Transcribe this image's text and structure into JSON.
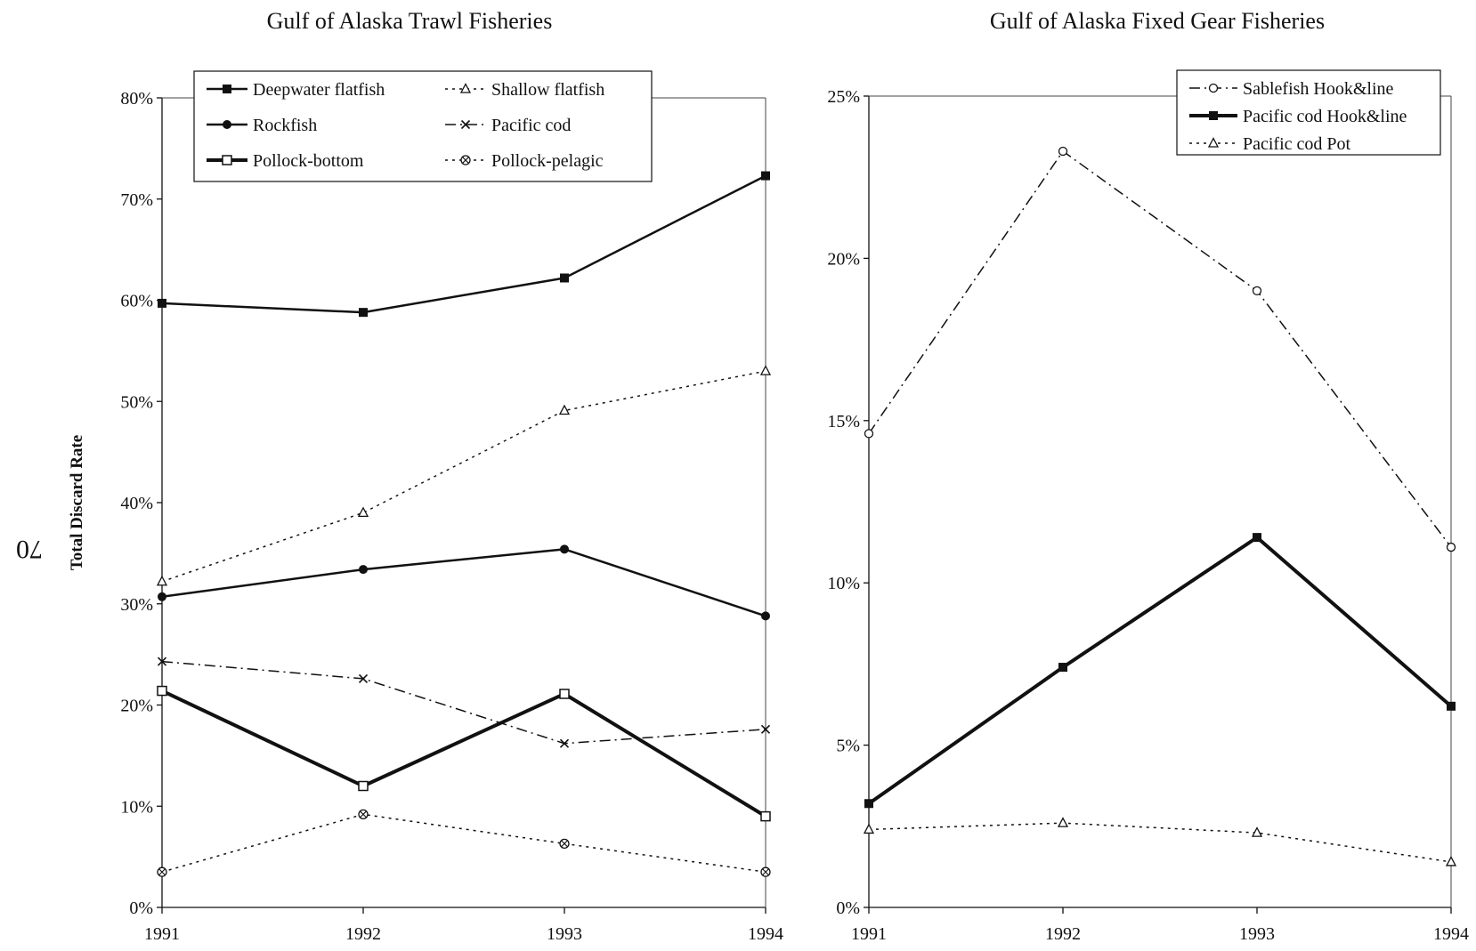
{
  "page_number": "70",
  "chart_data": [
    {
      "type": "line",
      "title": "Gulf of Alaska Trawl Fisheries",
      "xlabel": "",
      "ylabel": "Total Discard Rate",
      "x": [
        1991,
        1992,
        1993,
        1994
      ],
      "x_tick_labels": [
        "1991",
        "1992",
        "1993",
        "1994"
      ],
      "ylim": [
        0,
        80
      ],
      "y_ticks": [
        0,
        10,
        20,
        30,
        40,
        50,
        60,
        70,
        80
      ],
      "y_tick_labels": [
        "0%",
        "10%",
        "20%",
        "30%",
        "40%",
        "50%",
        "60%",
        "70%",
        "80%"
      ],
      "grid": false,
      "legend_position": "top",
      "series": [
        {
          "name": "Deepwater flatfish",
          "values": [
            59.7,
            58.8,
            62.2,
            72.3
          ],
          "style": "solid",
          "width": 2.5,
          "marker": "filled-square",
          "color": "#111111"
        },
        {
          "name": "Shallow flatfish",
          "values": [
            32.2,
            39.0,
            49.1,
            53.0
          ],
          "style": "dotted",
          "width": 1.5,
          "marker": "open-triangle",
          "color": "#111111"
        },
        {
          "name": "Rockfish",
          "values": [
            30.7,
            33.4,
            35.4,
            28.8
          ],
          "style": "solid",
          "width": 2.5,
          "marker": "filled-circle",
          "color": "#111111"
        },
        {
          "name": "Pacific cod",
          "values": [
            24.3,
            22.6,
            16.2,
            17.6
          ],
          "style": "dashdot",
          "width": 1.5,
          "marker": "x",
          "color": "#111111"
        },
        {
          "name": "Pollock-bottom",
          "values": [
            21.4,
            12.0,
            21.1,
            9.0
          ],
          "style": "solid",
          "width": 4,
          "marker": "open-square",
          "color": "#111111"
        },
        {
          "name": "Pollock-pelagic",
          "values": [
            3.5,
            9.2,
            6.3,
            3.5
          ],
          "style": "dotted",
          "width": 1.5,
          "marker": "circle-x",
          "color": "#111111"
        }
      ]
    },
    {
      "type": "line",
      "title": "Gulf of Alaska Fixed Gear Fisheries",
      "xlabel": "",
      "ylabel": "",
      "x": [
        1991,
        1992,
        1993,
        1994
      ],
      "x_tick_labels": [
        "1991",
        "1992",
        "1993",
        "1994"
      ],
      "ylim": [
        0,
        25
      ],
      "y_ticks": [
        0,
        5,
        10,
        15,
        20,
        25
      ],
      "y_tick_labels": [
        "0%",
        "5%",
        "10%",
        "15%",
        "20%",
        "25%"
      ],
      "grid": false,
      "legend_position": "top-right",
      "series": [
        {
          "name": "Sablefish Hook&line",
          "values": [
            14.6,
            23.3,
            19.0,
            11.1
          ],
          "style": "dashdot",
          "width": 1.5,
          "marker": "open-circle",
          "color": "#111111"
        },
        {
          "name": "Pacific cod Hook&line",
          "values": [
            3.2,
            7.4,
            11.4,
            6.2
          ],
          "style": "solid",
          "width": 4,
          "marker": "filled-square",
          "color": "#111111"
        },
        {
          "name": "Pacific cod Pot",
          "values": [
            2.4,
            2.6,
            2.3,
            1.4
          ],
          "style": "dotted",
          "width": 1.5,
          "marker": "open-triangle",
          "color": "#111111"
        }
      ]
    }
  ]
}
